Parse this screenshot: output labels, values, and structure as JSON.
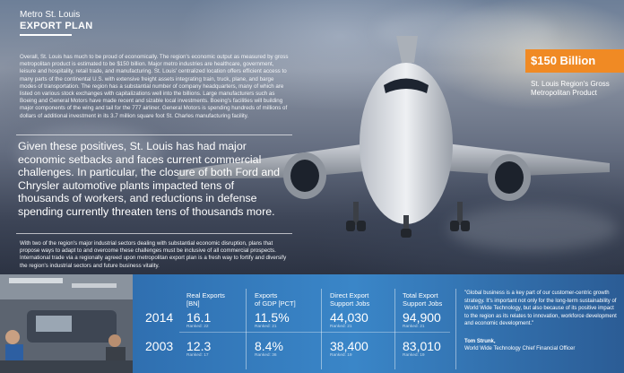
{
  "logo": {
    "line1": "Metro St. Louis",
    "line2": "EXPORT PLAN"
  },
  "intro_paragraph": "Overall, St. Louis has much to be proud of economically.  The region's economic output as measured by gross metropolitan product is estimated to be $150 billion.  Major metro industries are healthcare, government, leisure and hospitality, retail trade, and manufacturing.  St. Louis' centralized location offers efficient access to many parts of the continental U.S. with extensive freight assets integrating train, truck, plane, and barge modes of transportation.  The region has a substantial number of company headquarters, many of which are listed on various stock exchanges with capitalizations well into the billions.  Large manufacturers such as Boeing and General Motors have made recent and sizable local investments.  Boeing's facilities will building major components of the wing and tail for the 777 airliner.  General Motors is spending hundreds of millions of dollars of additional investment in its 3.7 million square foot St. Charles manufacturing facility.",
  "pull_quote": "Given these positives, St. Louis has had major economic setbacks and faces current commercial challenges.  In particular, the closure of both Ford and Chrysler automotive plants impacted tens of thousands of workers, and reductions in defense spending currently threaten tens of thousands more.",
  "closing_paragraph": "With two of the region's major industrial sectors dealing with substantial economic disruption, plans that propose ways to adapt to and overcome these challenges must be inclusive of all commercial prospects.  International trade via a regionally agreed upon metropolitan export plan is a fresh way to fortify and diversify the region's industrial sectors and future business vitality.",
  "gdp_callout": {
    "value": "$150 Billion",
    "caption": "St. Louis Region's Gross Metropolitan Product"
  },
  "stats": {
    "headers": [
      {
        "line1": "Real Exports",
        "line2": "[BN]"
      },
      {
        "line1": "Exports",
        "line2": "of GDP [PCT]"
      },
      {
        "line1": "Direct Export",
        "line2": "Support Jobs"
      },
      {
        "line1": "Total  Export",
        "line2": "Support Jobs"
      }
    ],
    "rows": [
      {
        "year": "2014",
        "cells": [
          {
            "value": "16.1",
            "rank": "Ranked: 22"
          },
          {
            "value": "11.5%",
            "rank": "Ranked: 21"
          },
          {
            "value": "44,030",
            "rank": "Ranked: 21"
          },
          {
            "value": "94,900",
            "rank": "Ranked: 21"
          }
        ]
      },
      {
        "year": "2003",
        "cells": [
          {
            "value": "12.3",
            "rank": "Ranked: 17"
          },
          {
            "value": "8.4%",
            "rank": "Ranked: 36"
          },
          {
            "value": "38,400",
            "rank": "Ranked: 19"
          },
          {
            "value": "83,010",
            "rank": "Ranked: 19"
          }
        ]
      }
    ]
  },
  "testimonial": {
    "quote": "\"Global business is a key part of our customer-centric growth strategy.  It's important not only for the long-term sustainability of World Wide Technology, but also because of its positive impact to the region as its relates to innovation, workforce development and economic development.\"",
    "name": "Tom Strunk,",
    "title": "World Wide Technology Chief Financial Officer"
  },
  "colors": {
    "accent_orange": "#f08a24",
    "panel_blue": "#3a86c8"
  }
}
